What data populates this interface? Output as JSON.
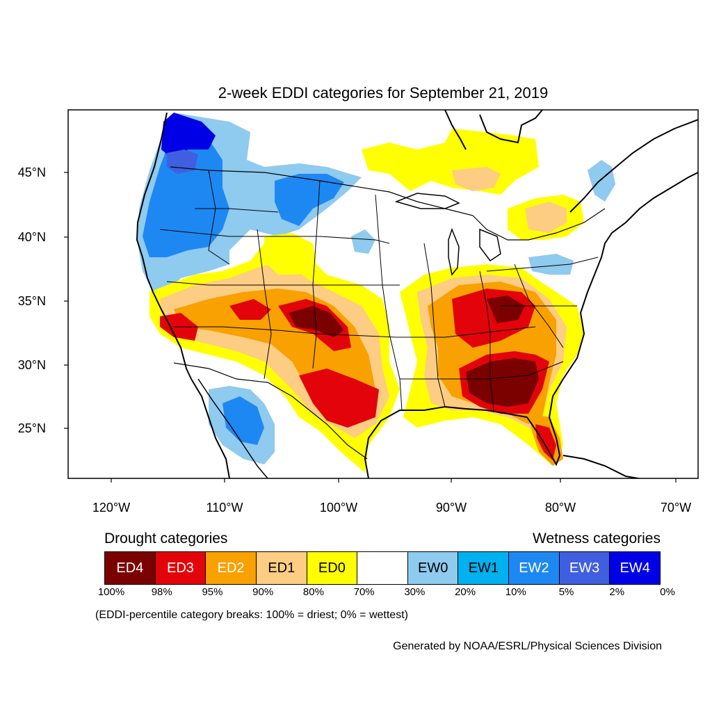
{
  "title": "2-week EDDI categories for September 21, 2019",
  "axes": {
    "lat_labels": [
      "45°N",
      "40°N",
      "35°N",
      "30°N",
      "25°N"
    ],
    "lon_labels": [
      "120°W",
      "110°W",
      "100°W",
      "90°W",
      "80°W",
      "70°W"
    ]
  },
  "legend": {
    "drought_heading": "Drought categories",
    "wetness_heading": "Wetness categories",
    "categories": [
      {
        "label": "ED4",
        "color": "#7b0000",
        "text_color": "#ffffff"
      },
      {
        "label": "ED3",
        "color": "#e2040a",
        "text_color": "#ffffff"
      },
      {
        "label": "ED2",
        "color": "#f8a100",
        "text_color": "#ffffff"
      },
      {
        "label": "ED1",
        "color": "#fccd82",
        "text_color": "#000000"
      },
      {
        "label": "ED0",
        "color": "#ffff00",
        "text_color": "#000000"
      },
      {
        "label": "",
        "color": "#ffffff",
        "text_color": "#000000"
      },
      {
        "label": "EW0",
        "color": "#8fcaef",
        "text_color": "#000000"
      },
      {
        "label": "EW1",
        "color": "#00b0ef",
        "text_color": "#000000"
      },
      {
        "label": "EW2",
        "color": "#1e88f2",
        "text_color": "#ffffff"
      },
      {
        "label": "EW3",
        "color": "#3f5fe0",
        "text_color": "#ffffff"
      },
      {
        "label": "EW4",
        "color": "#0000e6",
        "text_color": "#ffffff"
      }
    ],
    "breaks": [
      "100%",
      "98%",
      "95%",
      "90%",
      "80%",
      "70%",
      "30%",
      "20%",
      "10%",
      "5%",
      "2%",
      "0%"
    ],
    "note": "(EDDI-percentile category breaks: 100% = driest; 0% = wettest)"
  },
  "credit": "Generated by NOAA/ESRL/Physical Sciences Division"
}
